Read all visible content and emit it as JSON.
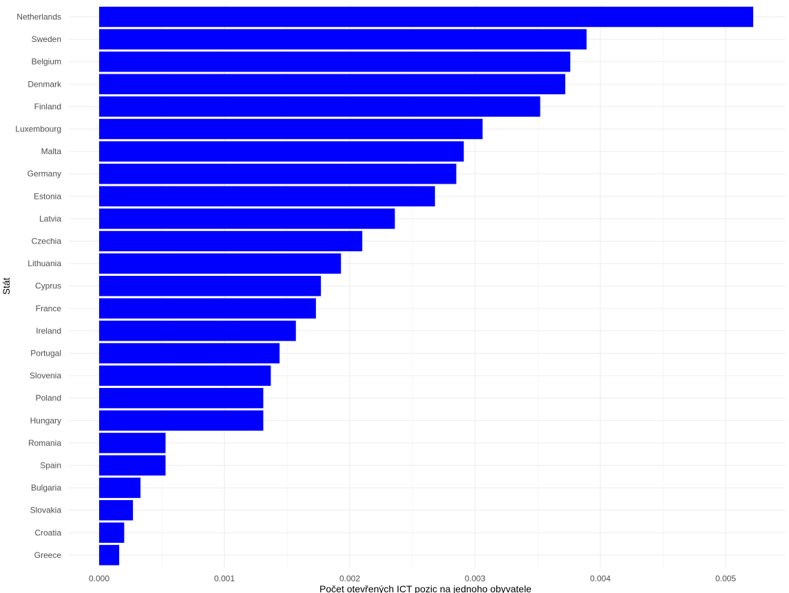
{
  "chart_data": {
    "type": "bar",
    "orientation": "horizontal",
    "xlabel": "Počet otevřených ICT pozic na jednoho obyvatele",
    "ylabel": "Stát",
    "xlim": [
      0,
      0.0052
    ],
    "x_ticks": [
      {
        "value": 0,
        "label": "0.000"
      },
      {
        "value": 0.001,
        "label": "0.001"
      },
      {
        "value": 0.002,
        "label": "0.002"
      },
      {
        "value": 0.003,
        "label": "0.003"
      },
      {
        "value": 0.004,
        "label": "0.004"
      },
      {
        "value": 0.005,
        "label": "0.005"
      }
    ],
    "bar_color": "#0000ff",
    "grid": true,
    "categories": [
      "Netherlands",
      "Sweden",
      "Belgium",
      "Denmark",
      "Finland",
      "Luxembourg",
      "Malta",
      "Germany",
      "Estonia",
      "Latvia",
      "Czechia",
      "Lithuania",
      "Cyprus",
      "France",
      "Ireland",
      "Portugal",
      "Slovenia",
      "Poland",
      "Hungary",
      "Romania",
      "Spain",
      "Bulgaria",
      "Slovakia",
      "Croatia",
      "Greece"
    ],
    "values": [
      0.00522,
      0.00389,
      0.00376,
      0.00372,
      0.00352,
      0.00306,
      0.00291,
      0.00285,
      0.00268,
      0.00236,
      0.0021,
      0.00193,
      0.00177,
      0.00173,
      0.00157,
      0.00144,
      0.00137,
      0.00131,
      0.00131,
      0.00053,
      0.00053,
      0.00033,
      0.00027,
      0.0002,
      0.00016
    ]
  }
}
